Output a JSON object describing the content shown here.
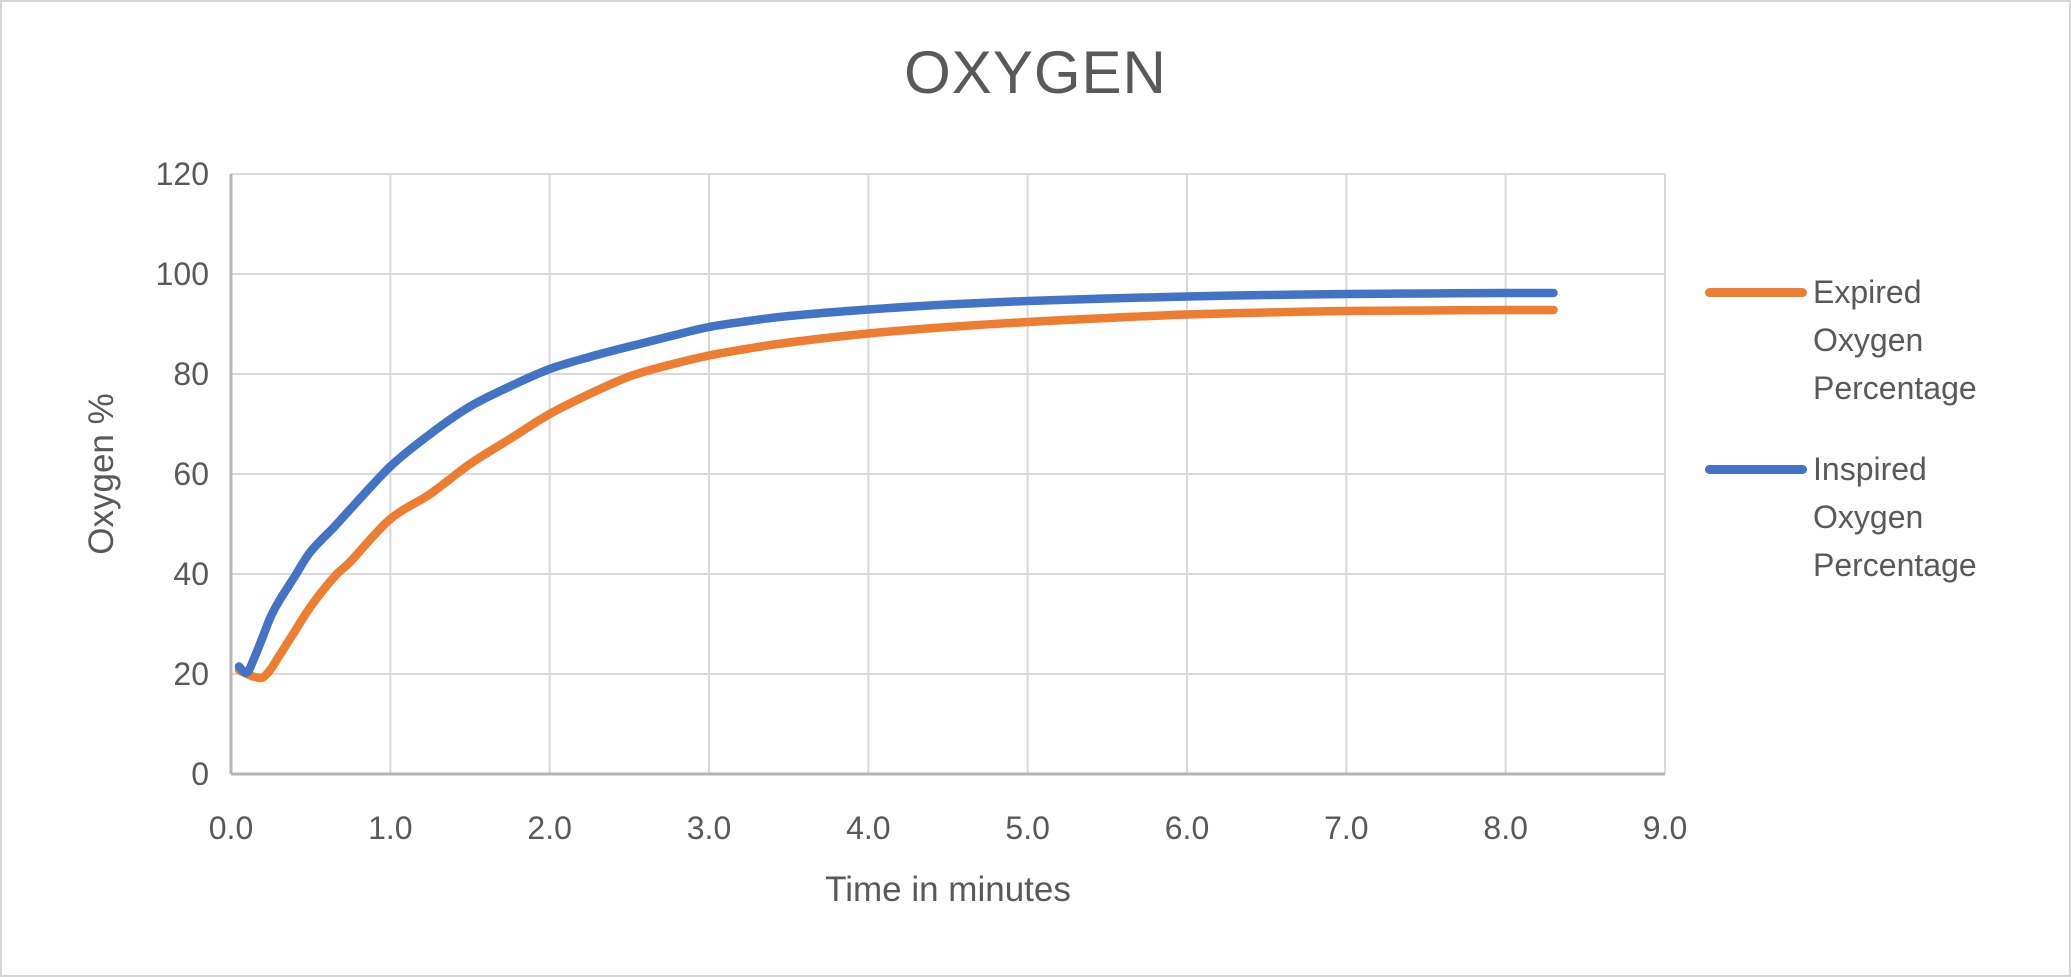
{
  "page": {
    "background": "#ffffff",
    "frame_border_color": "#d6d6d6",
    "text_color": "#595959"
  },
  "chart_data": {
    "type": "line",
    "title": "OXYGEN",
    "xlabel": "Time in minutes",
    "ylabel": "Oxygen %",
    "xlim": [
      0,
      9
    ],
    "ylim": [
      0,
      120
    ],
    "x_tick_labels": [
      "0.0",
      "1.0",
      "2.0",
      "3.0",
      "4.0",
      "5.0",
      "6.0",
      "7.0",
      "8.0",
      "9.0"
    ],
    "y_tick_labels": [
      "0",
      "20",
      "40",
      "60",
      "80",
      "100",
      "120"
    ],
    "grid": true,
    "gridline_color": "#d9d9d9",
    "axis_line_color": "#b5b5b5",
    "legend_position": "right",
    "x": [
      0.05,
      0.1,
      0.15,
      0.2,
      0.25,
      0.3,
      0.4,
      0.5,
      0.65,
      0.75,
      1.0,
      1.25,
      1.5,
      1.75,
      2.0,
      2.25,
      2.5,
      2.75,
      3.0,
      3.25,
      3.5,
      4.0,
      4.5,
      5.0,
      5.5,
      6.0,
      6.5,
      7.0,
      7.5,
      8.0,
      8.3
    ],
    "series": [
      {
        "name": "Expired Oxygen Percentage",
        "color": "#ED7D31",
        "values": [
          20.8,
          20.0,
          19.4,
          19.3,
          21.0,
          23.5,
          28.5,
          33.5,
          39.5,
          42.5,
          51.0,
          56.0,
          62.0,
          67.0,
          72.0,
          76.0,
          79.5,
          81.8,
          83.7,
          85.1,
          86.3,
          88.1,
          89.4,
          90.4,
          91.2,
          91.9,
          92.3,
          92.6,
          92.7,
          92.8,
          92.8
        ]
      },
      {
        "name": "Inspired Oxygen Percentage",
        "color": "#4472C4",
        "values": [
          21.5,
          20.3,
          23.5,
          27.5,
          31.5,
          34.5,
          39.5,
          44.5,
          49.5,
          53.0,
          61.5,
          68.0,
          73.5,
          77.5,
          81.0,
          83.4,
          85.5,
          87.5,
          89.4,
          90.6,
          91.6,
          92.9,
          93.9,
          94.6,
          95.1,
          95.5,
          95.8,
          96.0,
          96.1,
          96.2,
          96.2
        ]
      }
    ]
  }
}
